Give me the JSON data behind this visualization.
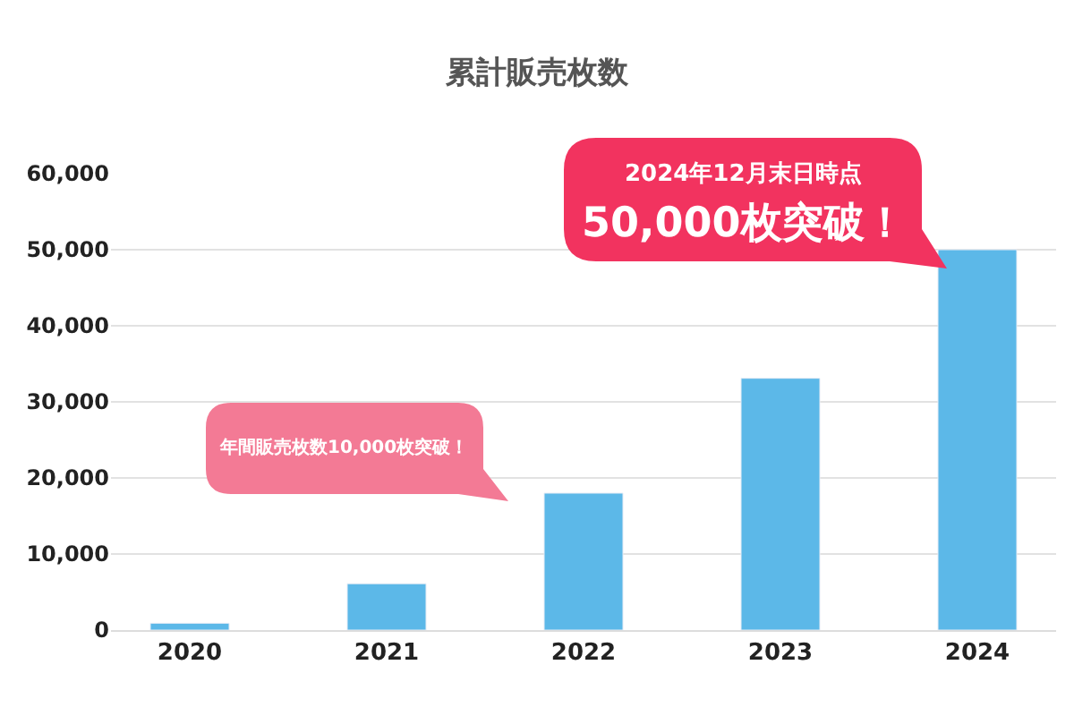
{
  "chart_data": {
    "type": "bar",
    "title": "累計販売枚数",
    "categories": [
      "2020",
      "2021",
      "2022",
      "2023",
      "2024"
    ],
    "values": [
      900,
      6100,
      18000,
      33100,
      50000
    ],
    "color": "#5cb8e8",
    "ylim": [
      0,
      60000
    ],
    "yticks": [
      {
        "value": 0,
        "label": "0"
      },
      {
        "value": 10000,
        "label": "10,000"
      },
      {
        "value": 20000,
        "label": "20,000"
      },
      {
        "value": 30000,
        "label": "30,000"
      },
      {
        "value": 40000,
        "label": "40,000"
      },
      {
        "value": 50000,
        "label": "50,000"
      },
      {
        "value": 60000,
        "label": "60,000"
      }
    ],
    "grid": "y",
    "legend": false,
    "annotations": [
      "年間販売枚数10,000枚突破！",
      "2024年12月末日時点",
      "50,000枚突破！"
    ]
  }
}
